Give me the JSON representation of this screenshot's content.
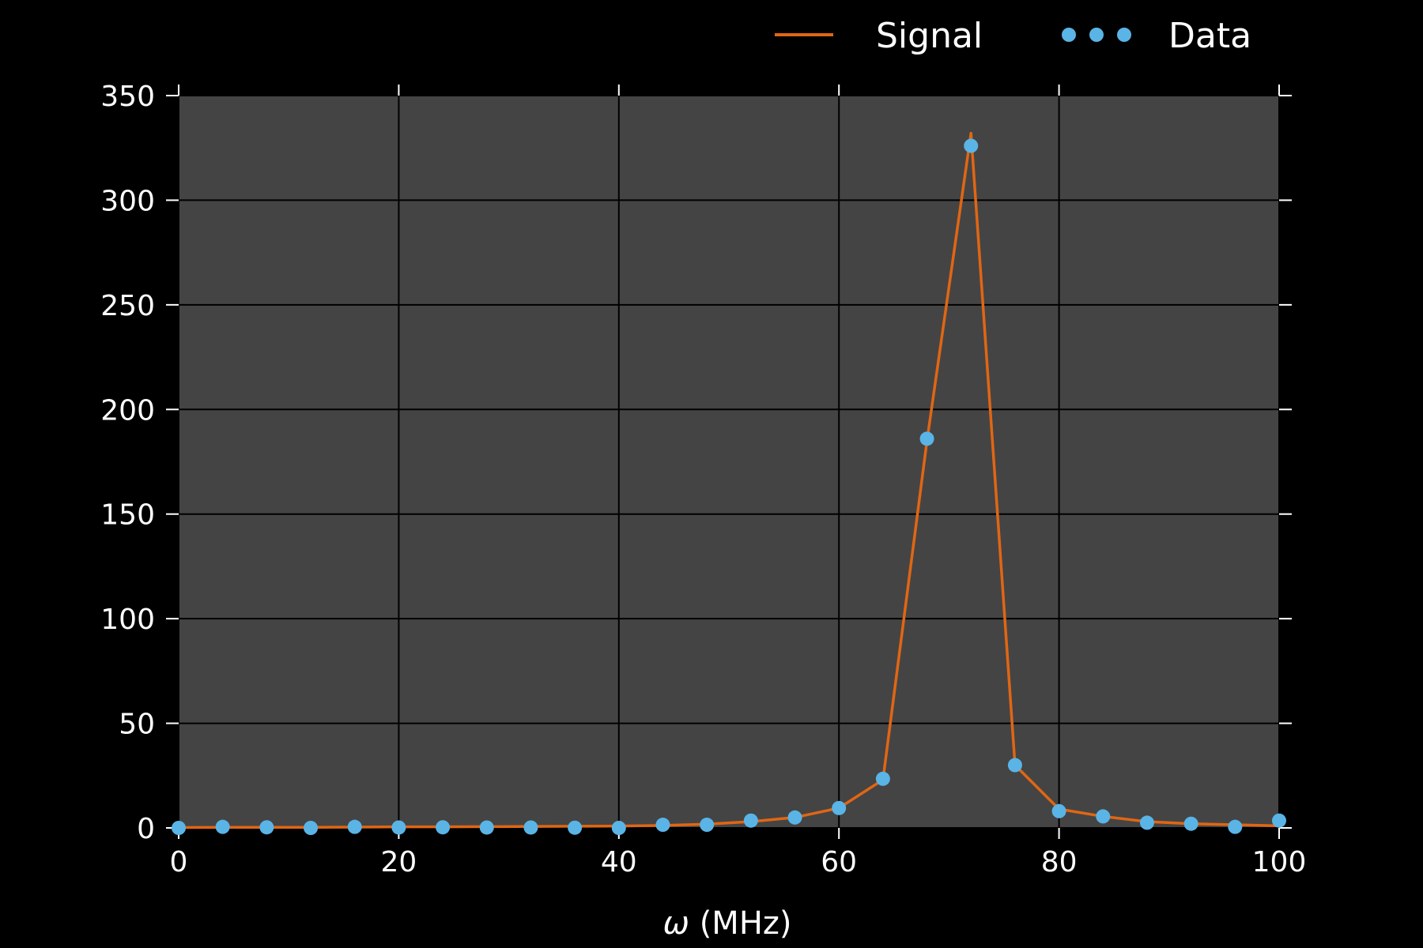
{
  "colors": {
    "background": "#000000",
    "plot_area": "#444444",
    "grid": "#000000",
    "axis_text": "#ffffff",
    "signal": "#e06614",
    "data": "#5ab4e6"
  },
  "legend": {
    "position": "top-right",
    "items": [
      {
        "label": "Signal",
        "style": "line"
      },
      {
        "label": "Data",
        "style": "dots"
      }
    ]
  },
  "chart_data": {
    "type": "line",
    "title": "",
    "xlabel": "ω (MHz)",
    "ylabel": "",
    "xlim": [
      0,
      100
    ],
    "ylim": [
      0,
      350
    ],
    "xticks": [
      0,
      20,
      40,
      60,
      80,
      100
    ],
    "yticks": [
      0,
      50,
      100,
      150,
      200,
      250,
      300,
      350
    ],
    "grid": true,
    "series": [
      {
        "name": "Signal",
        "kind": "line",
        "x": [
          0,
          4,
          8,
          12,
          16,
          20,
          24,
          28,
          32,
          36,
          40,
          44,
          48,
          52,
          56,
          60,
          64,
          68,
          72,
          76,
          80,
          84,
          88,
          92,
          96,
          100
        ],
        "y": [
          0.2,
          0.3,
          0.3,
          0.3,
          0.4,
          0.5,
          0.5,
          0.6,
          0.7,
          0.8,
          0.9,
          1.2,
          1.8,
          3.0,
          5.0,
          9.5,
          23,
          185,
          332,
          30,
          9,
          5.5,
          3,
          2,
          1.5,
          1
        ]
      },
      {
        "name": "Data",
        "kind": "scatter",
        "x": [
          0,
          4,
          8,
          12,
          16,
          20,
          24,
          28,
          32,
          36,
          40,
          44,
          48,
          52,
          56,
          60,
          64,
          68,
          72,
          76,
          80,
          84,
          88,
          92,
          96,
          100
        ],
        "y": [
          0,
          0.5,
          0.3,
          0,
          0.5,
          0.2,
          0.3,
          0.2,
          0.2,
          0.1,
          0,
          1.5,
          1.5,
          3.5,
          5,
          9.5,
          23.5,
          186,
          326,
          30,
          8,
          5.5,
          2.5,
          2,
          0.5,
          3.5
        ]
      }
    ]
  }
}
